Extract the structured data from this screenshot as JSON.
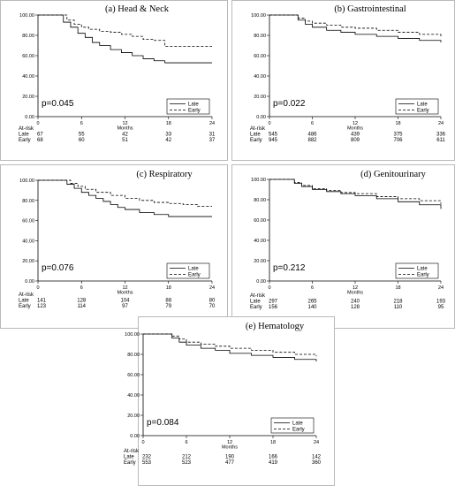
{
  "chart_data": [
    {
      "type": "line",
      "title": "(a) Head & Neck",
      "xlabel": "Months",
      "ylabel": "",
      "xlim": [
        0,
        24
      ],
      "ylim": [
        0,
        100
      ],
      "xticks": [
        "0",
        "6",
        "12",
        "18",
        "24"
      ],
      "yticks": [
        "0.00",
        "20.00",
        "40.00",
        "60.00",
        "80.00",
        "100.00"
      ],
      "p_value": "p=0.045",
      "legend_position": "bottom-right",
      "series": [
        {
          "name": "Late",
          "dash": "solid",
          "x": [
            0,
            2.5,
            3.5,
            4.5,
            5.5,
            6.5,
            7.5,
            8.5,
            10,
            11.5,
            13,
            14.5,
            16,
            17.5,
            24
          ],
          "y": [
            100,
            100,
            93,
            88,
            82,
            78,
            73,
            70,
            66,
            63,
            60,
            57,
            55,
            53,
            53
          ]
        },
        {
          "name": "Early",
          "dash": "dashed",
          "x": [
            0,
            3,
            4,
            5,
            6,
            7,
            8.5,
            10,
            11.5,
            13,
            14.5,
            16,
            17.5,
            24
          ],
          "y": [
            100,
            100,
            95,
            91,
            88,
            86,
            84,
            83,
            81,
            79,
            76,
            75,
            69,
            69
          ]
        }
      ],
      "at_risk": {
        "header": "At-risk",
        "rows": [
          {
            "label": "Late",
            "values": [
              "67",
              "55",
              "42",
              "33",
              "31"
            ]
          },
          {
            "label": "Early",
            "values": [
              "68",
              "60",
              "51",
              "42",
              "37"
            ]
          }
        ]
      }
    },
    {
      "type": "line",
      "title": "(b) Gastrointestinal",
      "xlabel": "Months",
      "ylabel": "",
      "xlim": [
        0,
        24
      ],
      "ylim": [
        0,
        100
      ],
      "xticks": [
        "0",
        "6",
        "12",
        "18",
        "24"
      ],
      "yticks": [
        "0.00",
        "20.00",
        "40.00",
        "60.00",
        "80.00",
        "100.00"
      ],
      "p_value": "p=0.022",
      "legend_position": "bottom-right",
      "series": [
        {
          "name": "Late",
          "dash": "solid",
          "x": [
            0,
            3,
            4,
            5,
            6,
            8,
            10,
            12,
            15,
            18,
            21,
            24
          ],
          "y": [
            100,
            100,
            95,
            91,
            88,
            85,
            83,
            81,
            79,
            77,
            75,
            73
          ]
        },
        {
          "name": "Early",
          "dash": "dashed",
          "x": [
            0,
            3,
            4,
            5,
            6,
            8,
            10,
            12,
            15,
            18,
            21,
            24
          ],
          "y": [
            100,
            100,
            97,
            94,
            92,
            90,
            88,
            87,
            85,
            83,
            81,
            79
          ]
        }
      ],
      "at_risk": {
        "header": "At-risk",
        "rows": [
          {
            "label": "Late",
            "values": [
              "545",
              "486",
              "439",
              "375",
              "336"
            ]
          },
          {
            "label": "Early",
            "values": [
              "945",
              "882",
              "809",
              "706",
              "611"
            ]
          }
        ]
      }
    },
    {
      "type": "line",
      "title": "(c) Respiratory",
      "xlabel": "Months",
      "ylabel": "",
      "xlim": [
        0,
        24
      ],
      "ylim": [
        0,
        100
      ],
      "xticks": [
        "0",
        "6",
        "12",
        "18",
        "24"
      ],
      "yticks": [
        "0.00",
        "20.00",
        "40.00",
        "60.00",
        "80.00",
        "100.00"
      ],
      "p_value": "p=0.076",
      "legend_position": "bottom-right",
      "series": [
        {
          "name": "Late",
          "dash": "solid",
          "x": [
            0,
            3,
            4,
            5,
            6,
            7,
            8,
            9,
            10,
            11,
            12,
            14,
            16,
            18,
            24
          ],
          "y": [
            100,
            100,
            96,
            92,
            88,
            85,
            82,
            79,
            76,
            73,
            71,
            68,
            66,
            64,
            64
          ]
        },
        {
          "name": "Early",
          "dash": "dashed",
          "x": [
            0,
            3.5,
            4.5,
            5.5,
            6.5,
            8,
            10,
            12,
            14,
            16,
            18,
            20,
            22,
            24
          ],
          "y": [
            100,
            100,
            97,
            94,
            91,
            88,
            85,
            82,
            80,
            78,
            77,
            76,
            74,
            74
          ]
        }
      ],
      "at_risk": {
        "header": "At-risk",
        "rows": [
          {
            "label": "Late",
            "values": [
              "141",
              "128",
              "104",
              "88",
              "80"
            ]
          },
          {
            "label": "Early",
            "values": [
              "123",
              "114",
              "97",
              "79",
              "70"
            ]
          }
        ]
      }
    },
    {
      "type": "line",
      "title": "(d) Genitourinary",
      "xlabel": "Months",
      "ylabel": "",
      "xlim": [
        0,
        24
      ],
      "ylim": [
        0,
        100
      ],
      "xticks": [
        "0",
        "6",
        "12",
        "18",
        "24"
      ],
      "yticks": [
        "0.00",
        "20.00",
        "40.00",
        "60.00",
        "80.00",
        "100.00"
      ],
      "p_value": "p=0.212",
      "legend_position": "bottom-right",
      "series": [
        {
          "name": "Late",
          "dash": "solid",
          "x": [
            0,
            2.5,
            3.5,
            4.5,
            6,
            8,
            10,
            12,
            15,
            18,
            21,
            24
          ],
          "y": [
            100,
            100,
            96,
            93,
            90,
            88,
            86,
            84,
            81,
            78,
            75,
            71
          ]
        },
        {
          "name": "Early",
          "dash": "dashed",
          "x": [
            0,
            2.5,
            3.5,
            4.5,
            6,
            8,
            10,
            12,
            15,
            18,
            21,
            24
          ],
          "y": [
            100,
            100,
            97,
            94,
            91,
            89,
            87,
            86,
            83,
            81,
            79,
            76
          ]
        }
      ],
      "at_risk": {
        "header": "At-risk",
        "rows": [
          {
            "label": "Late",
            "values": [
              "297",
              "265",
              "240",
              "218",
              "193"
            ]
          },
          {
            "label": "Early",
            "values": [
              "156",
              "140",
              "128",
              "110",
              "95"
            ]
          }
        ]
      }
    },
    {
      "type": "line",
      "title": "(e) Hematology",
      "xlabel": "Months",
      "ylabel": "",
      "xlim": [
        0,
        24
      ],
      "ylim": [
        0,
        100
      ],
      "xticks": [
        "0",
        "6",
        "12",
        "18",
        "24"
      ],
      "yticks": [
        "0.00",
        "20.00",
        "40.00",
        "60.00",
        "80.00",
        "100.00"
      ],
      "p_value": "p=0.084",
      "legend_position": "bottom-right",
      "series": [
        {
          "name": "Late",
          "dash": "solid",
          "x": [
            0,
            3,
            4,
            5,
            6,
            8,
            10,
            12,
            15,
            18,
            21,
            24
          ],
          "y": [
            100,
            100,
            96,
            92,
            89,
            86,
            84,
            81,
            79,
            77,
            75,
            73
          ]
        },
        {
          "name": "Early",
          "dash": "dashed",
          "x": [
            0,
            3,
            4,
            5,
            6,
            8,
            10,
            12,
            15,
            18,
            21,
            24
          ],
          "y": [
            100,
            100,
            98,
            95,
            92,
            90,
            88,
            86,
            84,
            82,
            80,
            78
          ]
        }
      ],
      "at_risk": {
        "header": "At-risk",
        "rows": [
          {
            "label": "Late",
            "values": [
              "232",
              "212",
              "190",
              "166",
              "142"
            ]
          },
          {
            "label": "Early",
            "values": [
              "553",
              "523",
              "477",
              "419",
              "360"
            ]
          }
        ]
      }
    }
  ]
}
